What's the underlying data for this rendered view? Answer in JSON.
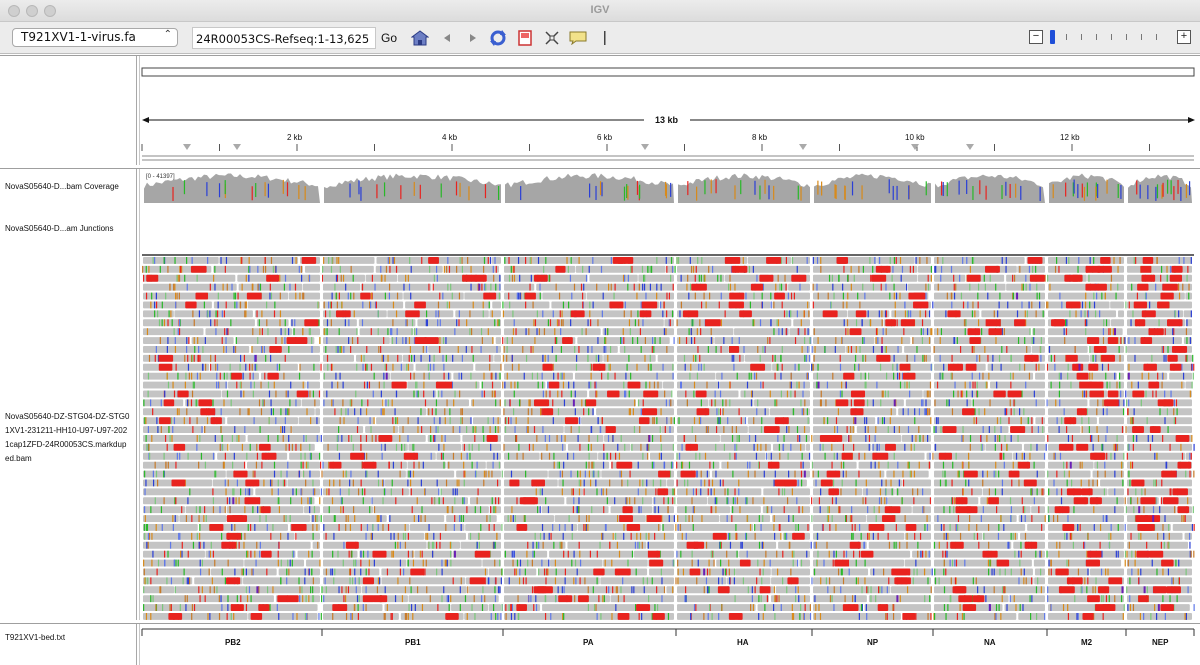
{
  "window": {
    "title": "IGV"
  },
  "toolbar": {
    "genome": "T921XV1-1-virus.fa",
    "locus": "24R00053CS-Refseq:1-13,625",
    "go_label": "Go",
    "icons": [
      "home-icon",
      "back-icon",
      "forward-icon",
      "refresh-icon",
      "roi-icon",
      "fit-icon",
      "popup-icon",
      "ruler-line-icon"
    ],
    "zoom_minus": "−",
    "zoom_plus": "+"
  },
  "ruler": {
    "span_label": "13 kb",
    "ticks": [
      "2 kb",
      "4 kb",
      "6 kb",
      "8 kb",
      "10 kb",
      "12 kb"
    ]
  },
  "tracks": {
    "coverage_label": "NovaS05640-D...bam Coverage",
    "coverage_range": "[0 - 41397]",
    "junctions_label": "NovaS05640-D...am Junctions",
    "alignment_label": [
      "NovaS05640-DZ-STG04-DZ-STG0",
      "1XV1-231211-HH10-U97-U97-202",
      "1cap1ZFD-24R00053CS.markdup",
      "ed.bam"
    ],
    "feature_label": "T921XV1-bed.txt"
  },
  "genes": [
    "PB2",
    "PB1",
    "PA",
    "HA",
    "NP",
    "NA",
    "M2",
    "NEP"
  ],
  "colors": {
    "read_gray": "#c4c4c4",
    "coverage_gray": "#a6a6a6",
    "mismatch_red": "#e8231f",
    "insertion_purple": "#6a1fb5",
    "base_blue": "#2a3fd6",
    "base_green": "#28b828",
    "base_orange": "#d88a1a"
  }
}
